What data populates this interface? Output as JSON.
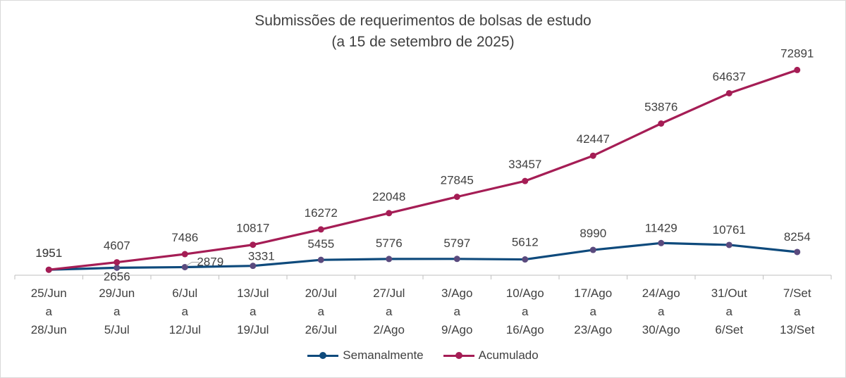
{
  "chart_data": {
    "type": "line",
    "title": "Submissões de requerimentos de bolsas de estudo",
    "subtitle": "(a 15 de setembro de 2025)",
    "categories": [
      [
        "25/Jun",
        "a",
        "28/Jun"
      ],
      [
        "29/Jun",
        "a",
        "5/Jul"
      ],
      [
        "6/Jul",
        "a",
        "12/Jul"
      ],
      [
        "13/Jul",
        "a",
        "19/Jul"
      ],
      [
        "20/Jul",
        "a",
        "26/Jul"
      ],
      [
        "27/Jul",
        "a",
        "2/Ago"
      ],
      [
        "3/Ago",
        "a",
        "9/Ago"
      ],
      [
        "10/Ago",
        "a",
        "16/Ago"
      ],
      [
        "17/Ago",
        "a",
        "23/Ago"
      ],
      [
        "24/Ago",
        "a",
        "30/Ago"
      ],
      [
        "31/Out",
        "a",
        "6/Set"
      ],
      [
        "7/Set",
        "a",
        "13/Set"
      ]
    ],
    "series": [
      {
        "name": "Semanalmente",
        "color": "#0e4a7c",
        "marker_color": "#5a4a7e",
        "values": [
          1951,
          2656,
          2879,
          3331,
          5455,
          5776,
          5797,
          5612,
          8990,
          11429,
          10761,
          8254
        ]
      },
      {
        "name": "Acumulado",
        "color": "#a51d55",
        "marker_color": "#a51d55",
        "values": [
          1951,
          4607,
          7486,
          10817,
          16272,
          22048,
          27845,
          33457,
          42447,
          53876,
          64637,
          72891
        ]
      }
    ],
    "ylim": [
      0,
      80000
    ],
    "grid": false,
    "legend": "bottom"
  }
}
